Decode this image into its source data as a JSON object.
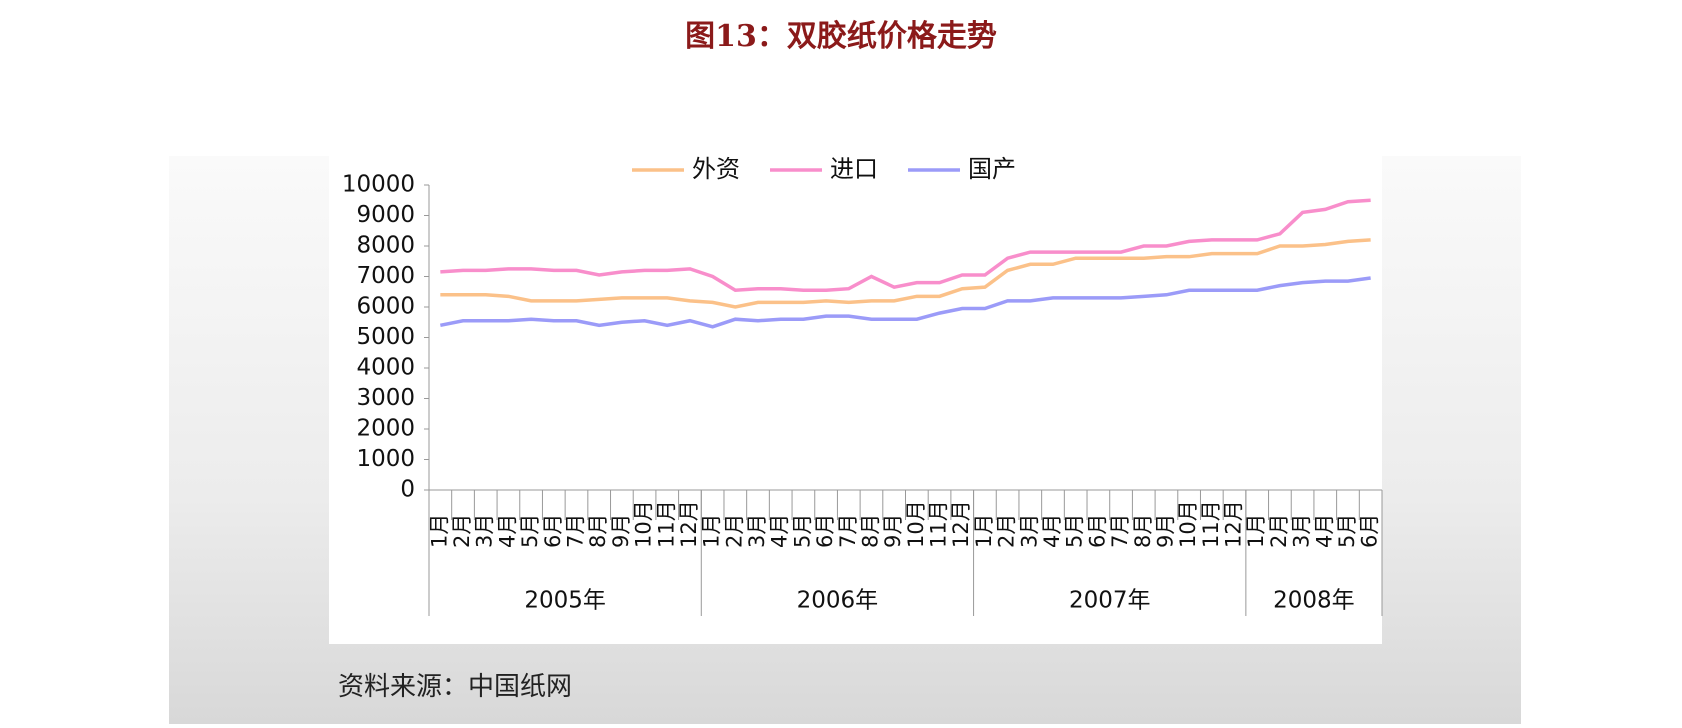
{
  "title": "图13：双胶纸价格走势",
  "source": "资料来源：中国纸网",
  "chart_data": {
    "type": "line",
    "categories": [
      "1月",
      "2月",
      "3月",
      "4月",
      "5月",
      "6月",
      "7月",
      "8月",
      "9月",
      "10月",
      "11月",
      "12月",
      "1月",
      "2月",
      "3月",
      "4月",
      "5月",
      "6月",
      "7月",
      "8月",
      "9月",
      "10月",
      "11月",
      "12月",
      "1月",
      "2月",
      "3月",
      "4月",
      "5月",
      "6月",
      "7月",
      "8月",
      "9月",
      "10月",
      "11月",
      "12月",
      "1月",
      "2月",
      "3月",
      "4月",
      "5月",
      "6月"
    ],
    "groups": [
      {
        "label": "2005年",
        "count": 12
      },
      {
        "label": "2006年",
        "count": 12
      },
      {
        "label": "2007年",
        "count": 12
      },
      {
        "label": "2008年",
        "count": 6
      }
    ],
    "series": [
      {
        "name": "外资",
        "color": "#fbc189",
        "values": [
          6400,
          6400,
          6400,
          6350,
          6200,
          6200,
          6200,
          6250,
          6300,
          6300,
          6300,
          6200,
          6150,
          6000,
          6150,
          6150,
          6150,
          6200,
          6150,
          6200,
          6200,
          6350,
          6350,
          6600,
          6650,
          7200,
          7400,
          7400,
          7600,
          7600,
          7600,
          7600,
          7650,
          7650,
          7750,
          7750,
          7750,
          8000,
          8000,
          8050,
          8150,
          8200
        ]
      },
      {
        "name": "进口",
        "color": "#f88ecb",
        "values": [
          7150,
          7200,
          7200,
          7250,
          7250,
          7200,
          7200,
          7050,
          7150,
          7200,
          7200,
          7250,
          7000,
          6550,
          6600,
          6600,
          6550,
          6550,
          6600,
          7000,
          6650,
          6800,
          6800,
          7050,
          7050,
          7600,
          7800,
          7800,
          7800,
          7800,
          7800,
          8000,
          8000,
          8150,
          8200,
          8200,
          8200,
          8400,
          9100,
          9200,
          9450,
          9500
        ]
      },
      {
        "name": "国产",
        "color": "#9b9bf8",
        "values": [
          5400,
          5550,
          5550,
          5550,
          5600,
          5550,
          5550,
          5400,
          5500,
          5550,
          5400,
          5550,
          5350,
          5600,
          5550,
          5600,
          5600,
          5700,
          5700,
          5600,
          5600,
          5600,
          5800,
          5950,
          5950,
          6200,
          6200,
          6300,
          6300,
          6300,
          6300,
          6350,
          6400,
          6550,
          6550,
          6550,
          6550,
          6700,
          6800,
          6850,
          6850,
          6950
        ]
      }
    ],
    "ylim": [
      0,
      10000
    ],
    "yticks": [
      0,
      1000,
      2000,
      3000,
      4000,
      5000,
      6000,
      7000,
      8000,
      9000,
      10000
    ],
    "legend": "top"
  }
}
